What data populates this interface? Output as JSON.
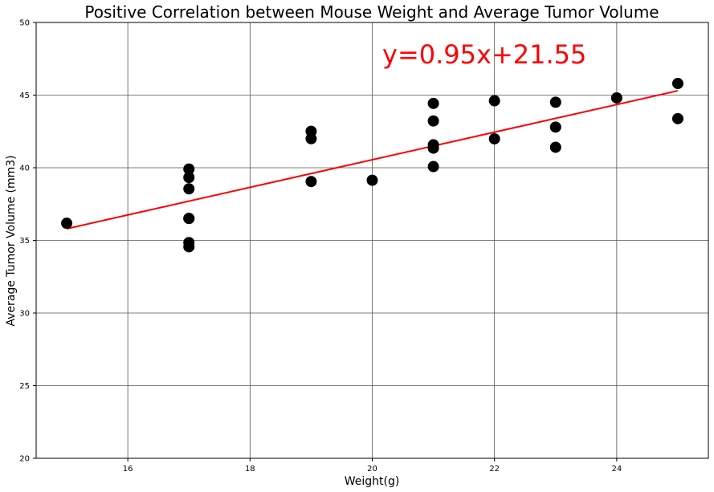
{
  "chart_data": {
    "type": "scatter",
    "title": "Positive Correlation between Mouse Weight and Average Tumor Volume",
    "xlabel": "Weight(g)",
    "ylabel": "Average Tumor Volume (mm3)",
    "xlim": [
      14.5,
      25.5
    ],
    "ylim": [
      20,
      50
    ],
    "xticks": [
      16,
      18,
      20,
      22,
      24
    ],
    "yticks": [
      20,
      25,
      30,
      35,
      40,
      45,
      50
    ],
    "grid": true,
    "annotation": "y=0.95x+21.55",
    "colors": {
      "points": "#000000",
      "regression": "#ff0000",
      "annotation": "#ff0000",
      "grid": "#555555"
    },
    "points": [
      {
        "x": 15,
        "y": 36.18
      },
      {
        "x": 17,
        "y": 39.91
      },
      {
        "x": 17,
        "y": 39.33
      },
      {
        "x": 17,
        "y": 38.55
      },
      {
        "x": 17,
        "y": 36.51
      },
      {
        "x": 17,
        "y": 36.51
      },
      {
        "x": 17,
        "y": 34.85
      },
      {
        "x": 17,
        "y": 34.56
      },
      {
        "x": 19,
        "y": 42.51
      },
      {
        "x": 19,
        "y": 42.0
      },
      {
        "x": 19,
        "y": 39.05
      },
      {
        "x": 20,
        "y": 39.14
      },
      {
        "x": 21,
        "y": 44.43
      },
      {
        "x": 21,
        "y": 43.22
      },
      {
        "x": 21,
        "y": 41.58
      },
      {
        "x": 21,
        "y": 41.35
      },
      {
        "x": 21,
        "y": 40.08
      },
      {
        "x": 22,
        "y": 44.61
      },
      {
        "x": 22,
        "y": 41.99
      },
      {
        "x": 23,
        "y": 44.51
      },
      {
        "x": 23,
        "y": 42.8
      },
      {
        "x": 23,
        "y": 41.41
      },
      {
        "x": 24,
        "y": 44.81
      },
      {
        "x": 25,
        "y": 45.8
      },
      {
        "x": 25,
        "y": 43.38
      }
    ],
    "regression": {
      "slope": 0.95,
      "intercept": 21.55,
      "x_range": [
        15,
        25
      ]
    }
  }
}
